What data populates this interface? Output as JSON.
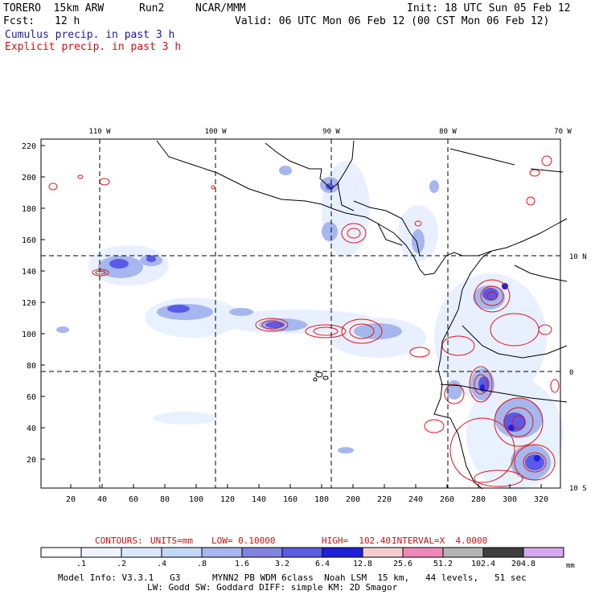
{
  "header": {
    "model": "TORERO  15km ARW",
    "run": "Run2",
    "org": "NCAR/MMM",
    "init": "Init: 18 UTC Sun 05 Feb 12",
    "fcst_label": "Fcst:",
    "fcst_value": "12 h",
    "valid": "Valid: 06 UTC Mon 06 Feb 12 (00 CST Mon 06 Feb 12)",
    "cumulus": "Cumulus precip. in past 3 h",
    "explicit": "Explicit precip. in past 3 h"
  },
  "map": {
    "lon_labels": [
      "110 W",
      "100 W",
      "90 W",
      "80 W",
      "70 W"
    ],
    "lat_labels": [
      "10 N",
      "0",
      "10 S"
    ],
    "y_ticks": [
      "220",
      "200",
      "180",
      "160",
      "140",
      "120",
      "100",
      "80",
      "60",
      "40",
      "20"
    ],
    "x_ticks": [
      "20",
      "40",
      "60",
      "80",
      "100",
      "120",
      "140",
      "160",
      "180",
      "200",
      "220",
      "240",
      "260",
      "280",
      "300",
      "320"
    ],
    "colors": {
      "coast": "#000000",
      "grid": "#000000",
      "cumulus": "#3f3fd8",
      "explicit": "#e01515"
    }
  },
  "contours": {
    "label": "CONTOURS:",
    "units": "UNITS=mm",
    "low": "LOW= 0.10000",
    "high": "HIGH=  102.40",
    "interval": "INTERVAL=X  4.0000"
  },
  "colorbar": {
    "values": [
      ".1",
      ".2",
      ".4",
      ".8",
      "1.6",
      "3.2",
      "6.4",
      "12.8",
      "25.6",
      "51.2",
      "102.4",
      "204.8"
    ],
    "unit": "mm",
    "colors": [
      "#ffffff",
      "#eef4ff",
      "#dbe8ff",
      "#c2d8f6",
      "#a6b6ee",
      "#8282e0",
      "#5a5ae6",
      "#2020dc",
      "#f7cccc",
      "#ee88b8",
      "#b4b4b4",
      "#404040",
      "#d6a8ee"
    ]
  },
  "footer": {
    "line1": "Model Info: V3.3.1   G3      MYNN2 PB WDM 6class  Noah LSM  15 km,   44 levels,   51 sec",
    "line2": "LW: Godd SW: Goddard DIFF: simple KM: 2D Smagor"
  }
}
